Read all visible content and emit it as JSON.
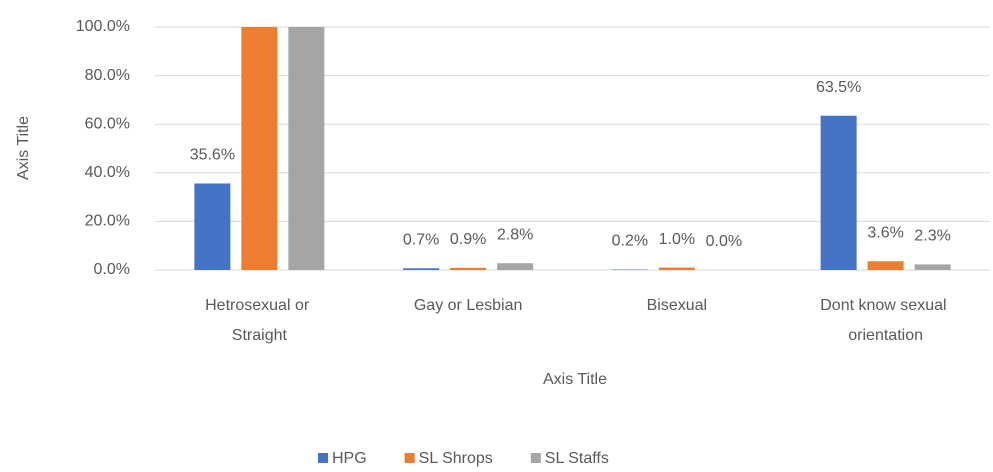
{
  "chart_data": {
    "type": "bar",
    "categories": [
      "Hetrosexual or Straight",
      "Gay or Lesbian",
      "Bisexual",
      "Dont know sexual orientation"
    ],
    "series": [
      {
        "name": "HPG",
        "color": "#4472c4",
        "values": [
          35.6,
          0.7,
          0.2,
          63.5
        ],
        "value_labels": [
          "35.6%",
          "0.7%",
          "0.2%",
          "63.5%"
        ]
      },
      {
        "name": "SL Shrops",
        "color": "#ed7d31",
        "values": [
          100,
          0.9,
          1.0,
          3.6
        ],
        "value_labels": [
          null,
          "0.9%",
          "1.0%",
          "3.6%"
        ]
      },
      {
        "name": "SL Staffs",
        "color": "#a5a5a5",
        "values": [
          100,
          2.8,
          0.0,
          2.3
        ],
        "value_labels": [
          null,
          "2.8%",
          "0.0%",
          "2.3%"
        ]
      }
    ],
    "x_label": "Axis Title",
    "y_label": "Axis Title",
    "ylim": [
      0,
      100
    ],
    "yticks": [
      {
        "value": 0,
        "label": "0.0%"
      },
      {
        "value": 20,
        "label": "20.0%"
      },
      {
        "value": 40,
        "label": "40.0%"
      },
      {
        "value": 60,
        "label": "60.0%"
      },
      {
        "value": 80,
        "label": "80.0%"
      },
      {
        "value": 100,
        "label": "100.0%"
      }
    ],
    "grid": true,
    "legend": "bottom"
  }
}
